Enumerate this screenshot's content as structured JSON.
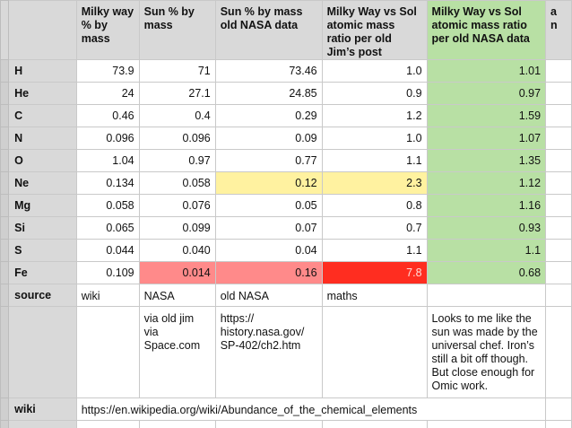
{
  "headers": {
    "c1": "Milky way % by mass",
    "c2": "Sun % by mass",
    "c3": "Sun % by mass old NASA data",
    "c4": "Milky Way vs Sol atomic mass ratio per old Jim’s post",
    "c5": "Milky Way vs Sol atomic mass ratio per old NASA data",
    "c6": "a n"
  },
  "rows": [
    {
      "el": "H",
      "mw": "73.9",
      "sun": "71",
      "nasa": "73.46",
      "jim": "1.0",
      "ratio": "1.01"
    },
    {
      "el": "He",
      "mw": "24",
      "sun": "27.1",
      "nasa": "24.85",
      "jim": "0.9",
      "ratio": "0.97"
    },
    {
      "el": "C",
      "mw": "0.46",
      "sun": "0.4",
      "nasa": "0.29",
      "jim": "1.2",
      "ratio": "1.59"
    },
    {
      "el": "N",
      "mw": "0.096",
      "sun": "0.096",
      "nasa": "0.09",
      "jim": "1.0",
      "ratio": "1.07"
    },
    {
      "el": "O",
      "mw": "1.04",
      "sun": "0.97",
      "nasa": "0.77",
      "jim": "1.1",
      "ratio": "1.35"
    },
    {
      "el": "Ne",
      "mw": "0.134",
      "sun": "0.058",
      "nasa": "0.12",
      "jim": "2.3",
      "ratio": "1.12"
    },
    {
      "el": "Mg",
      "mw": "0.058",
      "sun": "0.076",
      "nasa": "0.05",
      "jim": "0.8",
      "ratio": "1.16"
    },
    {
      "el": "Si",
      "mw": "0.065",
      "sun": "0.099",
      "nasa": "0.07",
      "jim": "0.7",
      "ratio": "0.93"
    },
    {
      "el": "S",
      "mw": "0.044",
      "sun": "0.040",
      "nasa": "0.04",
      "jim": "1.1",
      "ratio": "1.1"
    },
    {
      "el": "Fe",
      "mw": "0.109",
      "sun": "0.014",
      "nasa": "0.16",
      "jim": "7.8",
      "ratio": "0.68"
    }
  ],
  "source_row": {
    "label": "source",
    "mw": "wiki",
    "sun": "NASA",
    "nasa": "old NASA",
    "jim": "maths"
  },
  "notes_row": {
    "sun": "via old jim via Space.com",
    "nasa": "https:// history.nasa.gov/ SP-402/ch2.htm",
    "ratio": "Looks to me like the sun was made by the universal chef. Iron’s still a bit off though. But close enough for Omic work."
  },
  "wiki_row": {
    "label": "wiki",
    "url": "https://en.wikipedia.org/wiki/Abundance_of_the_chemical_elements"
  },
  "colors": {
    "yellow": "#fff2a0",
    "green": "#b8e0a4",
    "pink": "#ff8a8a",
    "red": "#ff2d20"
  }
}
